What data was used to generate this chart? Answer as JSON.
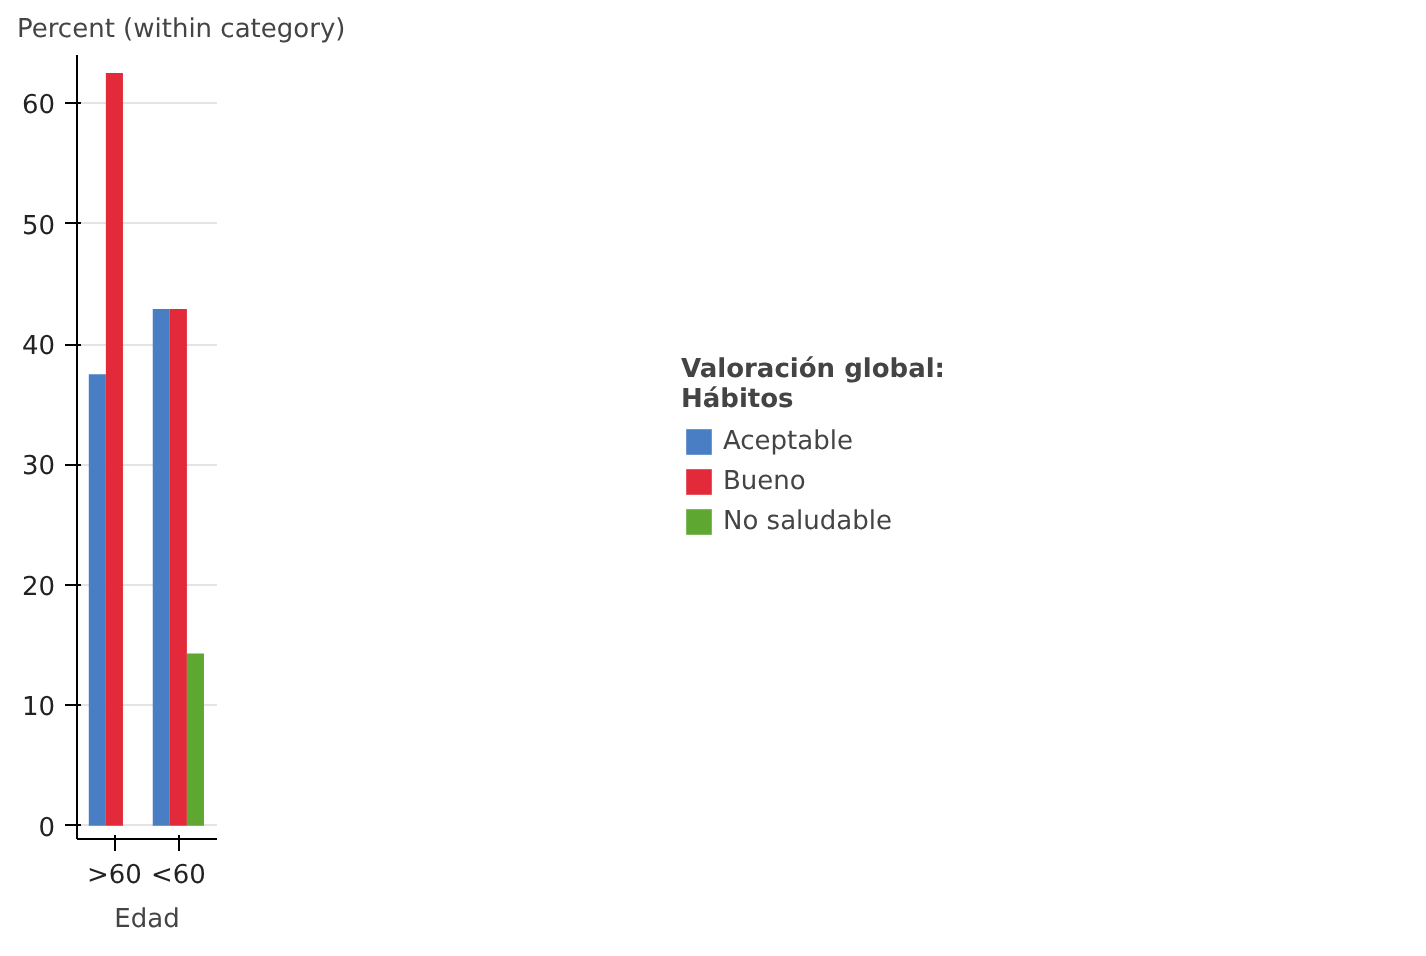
{
  "chart_data": {
    "type": "bar",
    "xlabel": "Edad",
    "ylabel": "Percent (within category)",
    "legend_title": "Valoración global:\nHábitos",
    "categories": [
      ">60",
      "<60"
    ],
    "series": [
      {
        "name": "Aceptable",
        "color": "#4a7ec4",
        "values": [
          37.5,
          42.9
        ]
      },
      {
        "name": "Bueno",
        "color": "#e22a3a",
        "values": [
          62.5,
          42.9
        ]
      },
      {
        "name": "No saludable",
        "color": "#5ea832",
        "values": [
          null,
          14.3
        ]
      }
    ],
    "ylim": [
      -1.1,
      64
    ],
    "yticks": [
      0,
      10,
      20,
      30,
      40,
      50,
      60
    ],
    "grid": "y",
    "legend": "right"
  }
}
